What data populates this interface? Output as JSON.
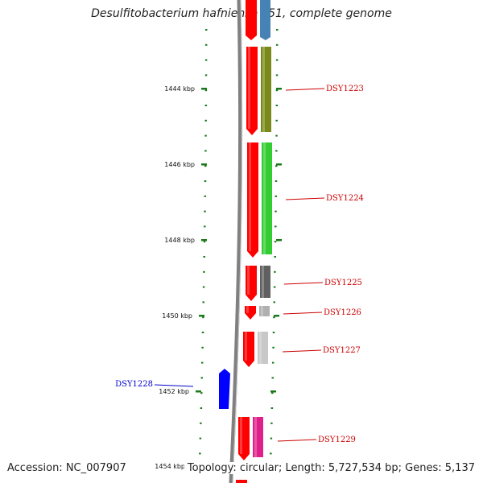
{
  "title": "Desulfitobacterium hafniense Y51, complete genome",
  "accession": "Accession: NC_007907",
  "summary": "Topology: circular; Length: 5,727,534 bp; Genes: 5,137",
  "colors": {
    "backbone": "#808080",
    "tick": "#1a7a1a",
    "forward_strand_gene": "#ff0000",
    "reverse_strand_gene": "#0000ff",
    "forward_label": "#cc0000",
    "reverse_label": "#0000cc"
  },
  "scale_ticks": [
    {
      "label": "1444 kbp"
    },
    {
      "label": "1446 kbp"
    },
    {
      "label": "1448 kbp"
    },
    {
      "label": "1450 kbp"
    },
    {
      "label": "1452 kbp"
    },
    {
      "label": "1454 kbp"
    }
  ],
  "genes": [
    {
      "label": "DSY1223",
      "strand": "forward",
      "cog_color": "#7a8a1a"
    },
    {
      "label": "DSY1224",
      "strand": "forward",
      "cog_color": "#33cc33"
    },
    {
      "label": "DSY1225",
      "strand": "forward",
      "cog_color": "#606060"
    },
    {
      "label": "DSY1226",
      "strand": "forward",
      "cog_color": "#b0b0b0"
    },
    {
      "label": "DSY1227",
      "strand": "forward",
      "cog_color": "#c8c8c8"
    },
    {
      "label": "DSY1228",
      "strand": "reverse",
      "cog_color": ""
    },
    {
      "label": "DSY1229",
      "strand": "forward",
      "cog_color": "#e0208a"
    }
  ]
}
